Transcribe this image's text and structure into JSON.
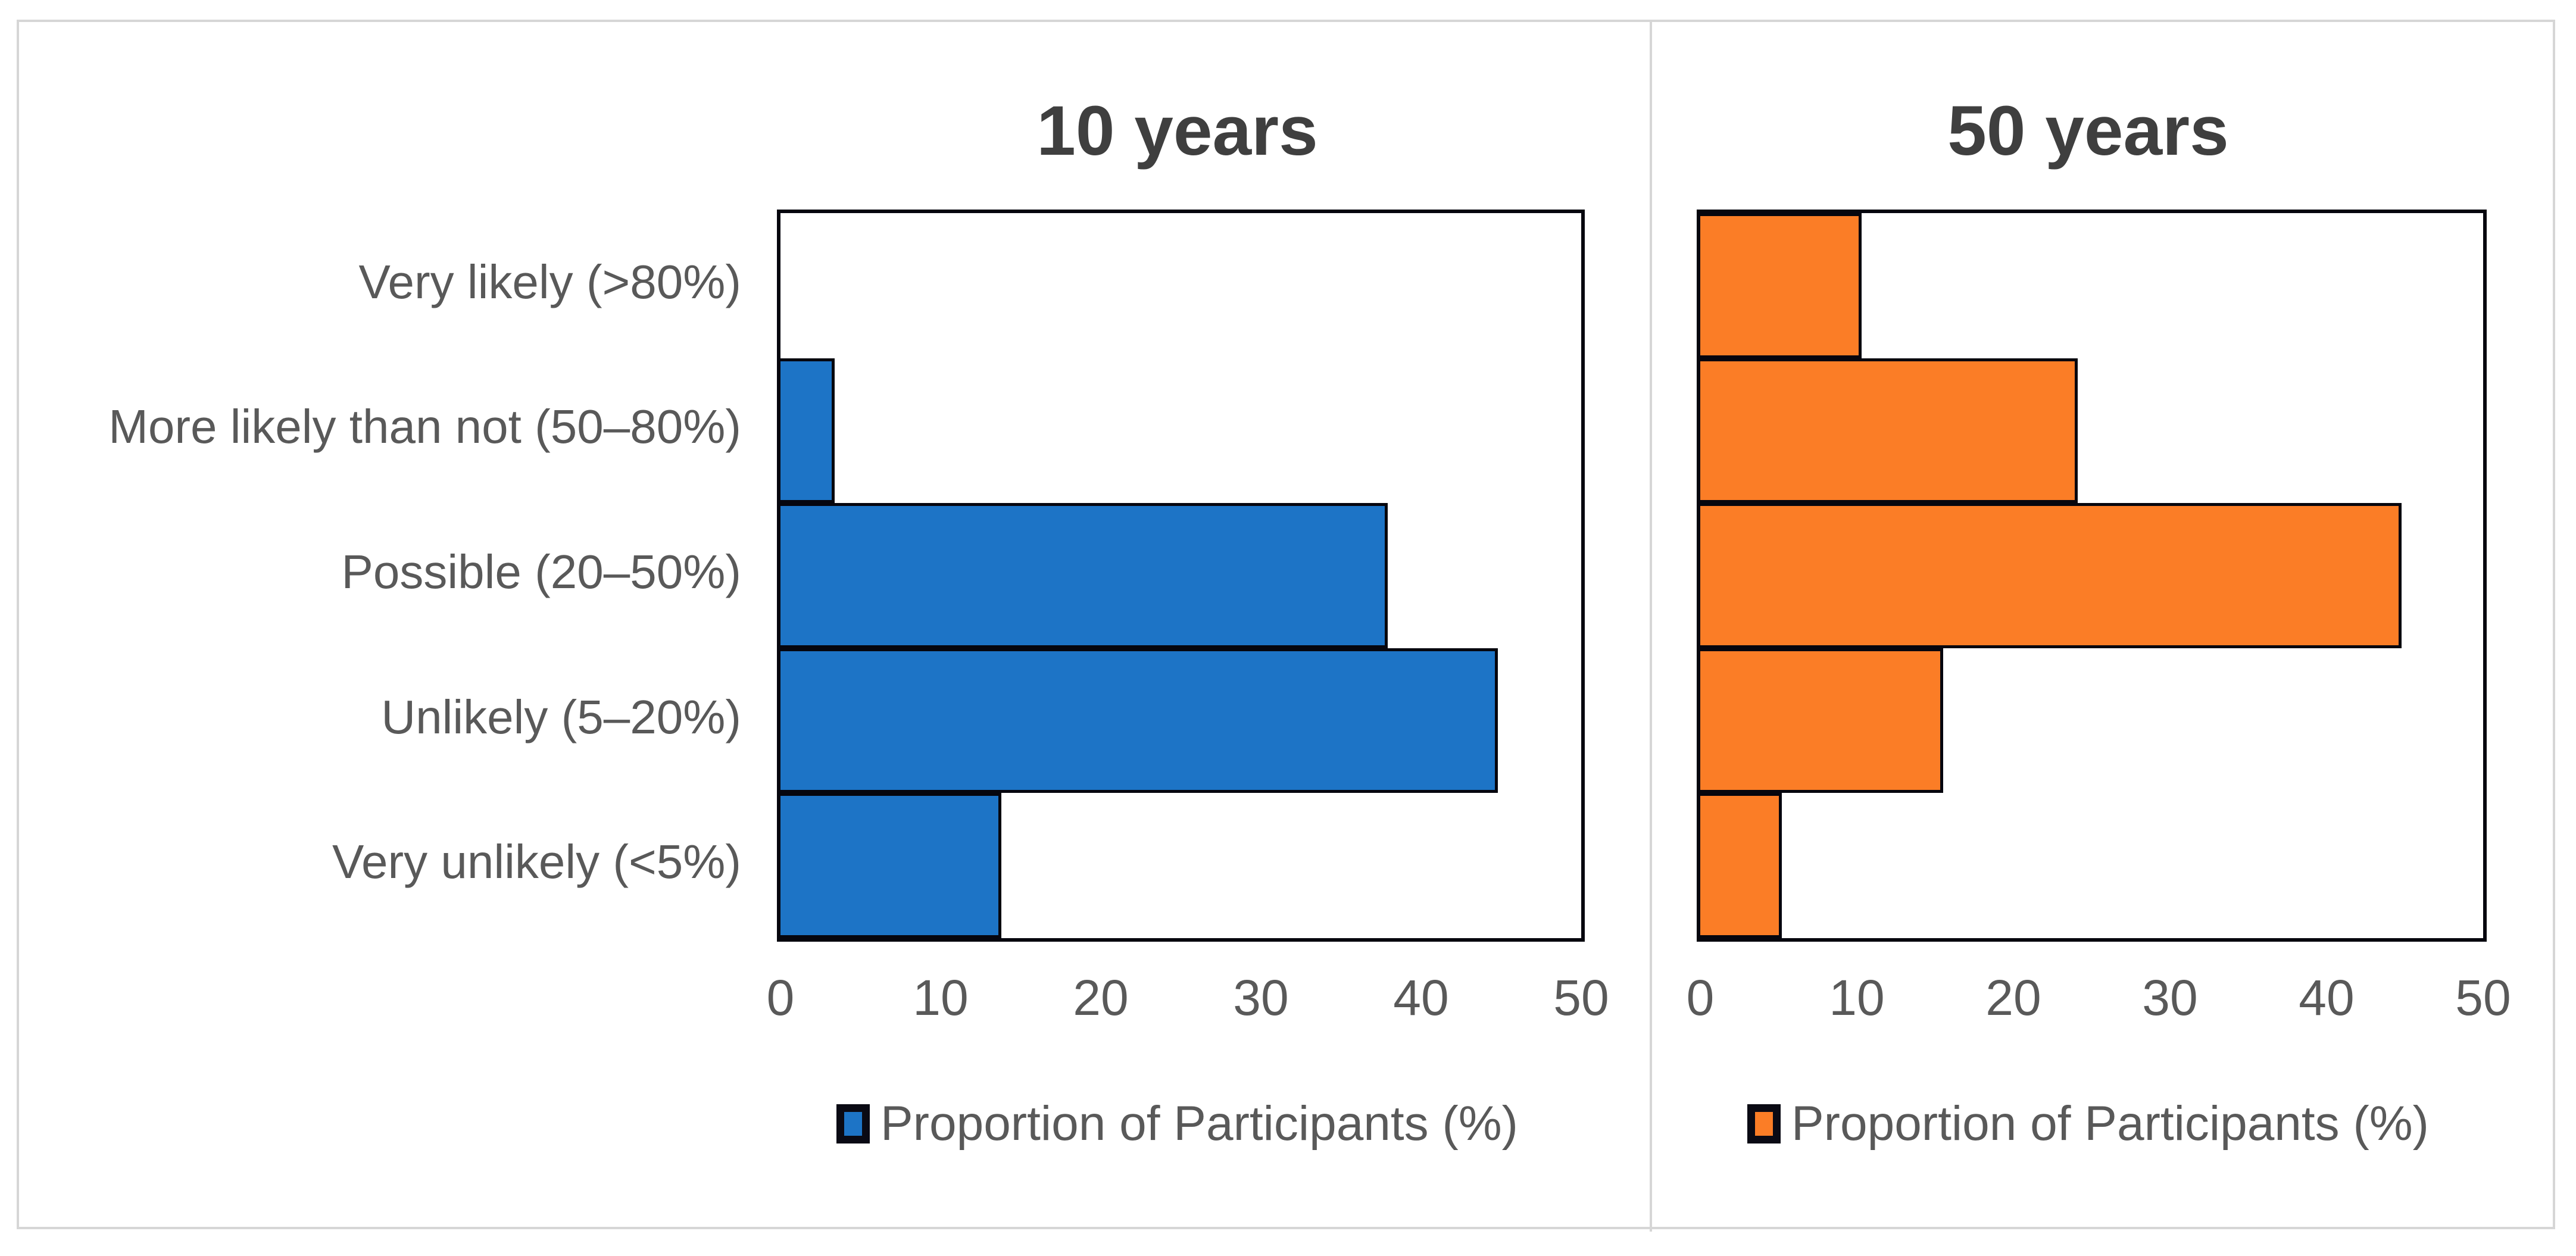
{
  "figure": {
    "x_ticks": [
      "0",
      "10",
      "20",
      "30",
      "40",
      "50"
    ],
    "categories": [
      "Very likely (>80%)",
      "More likely than not (50–80%)",
      "Possible (20–50%)",
      "Unlikely (5–20%)",
      "Very unlikely (<5%)"
    ],
    "divider_color": "#d6d6d6",
    "bar_border_color": "#06060e"
  },
  "chart_data": [
    {
      "type": "bar",
      "orientation": "horizontal",
      "title": "10 years",
      "categories": [
        "Very likely (>80%)",
        "More likely than not (50–80%)",
        "Possible (20–50%)",
        "Unlikely (5–20%)",
        "Very unlikely (<5%)"
      ],
      "values": [
        0,
        3.4,
        37.9,
        44.8,
        13.8
      ],
      "xlim": [
        0,
        50
      ],
      "x_ticks": [
        0,
        10,
        20,
        30,
        40,
        50
      ],
      "legend": "Proportion of Participants (%)",
      "legend_position": "bottom",
      "grid": false,
      "color": "#1d74c6"
    },
    {
      "type": "bar",
      "orientation": "horizontal",
      "title": "50 years",
      "categories": [
        "Very likely (>80%)",
        "More likely than not (50–80%)",
        "Possible (20–50%)",
        "Unlikely (5–20%)",
        "Very unlikely (<5%)"
      ],
      "values": [
        10.3,
        24.1,
        44.8,
        15.5,
        5.2
      ],
      "xlim": [
        0,
        50
      ],
      "x_ticks": [
        0,
        10,
        20,
        30,
        40,
        50
      ],
      "legend": "Proportion of Participants (%)",
      "legend_position": "bottom",
      "grid": false,
      "color": "#fb7d26"
    }
  ]
}
